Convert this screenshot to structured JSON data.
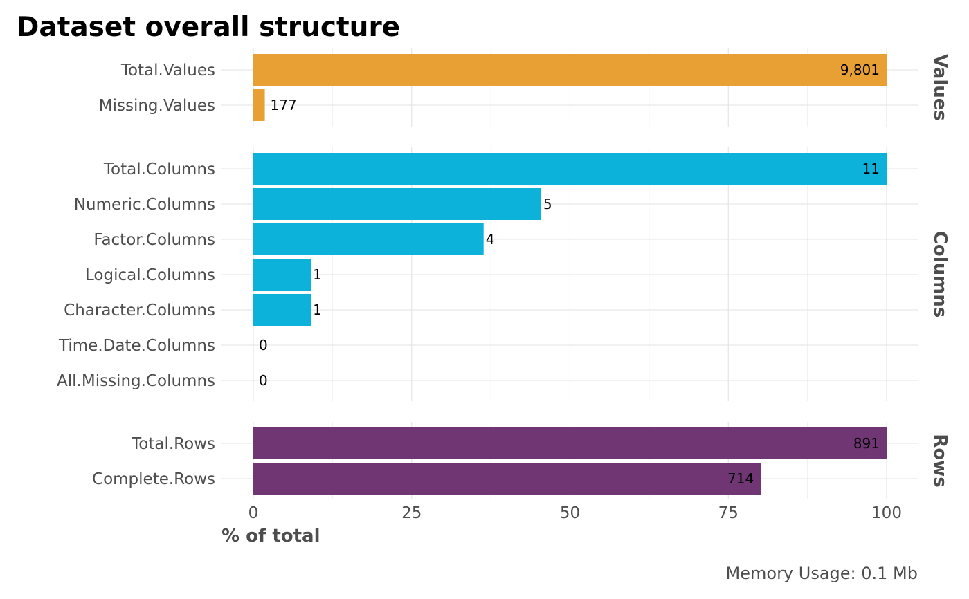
{
  "chart_data": {
    "type": "bar",
    "orientation": "horizontal",
    "title": "Dataset overall structure",
    "xlabel": "% of total",
    "xlim": [
      0,
      100
    ],
    "xticks": [
      "0",
      "25",
      "50",
      "75",
      "100"
    ],
    "caption": "Memory Usage: 0.1 Mb",
    "grid": true,
    "panels": [
      {
        "name": "Values",
        "color": "#E89F33",
        "categories": [
          "Total.Values",
          "Missing.Values"
        ],
        "values": [
          100,
          1.81
        ],
        "labels": [
          "9,801",
          "177"
        ]
      },
      {
        "name": "Columns",
        "color": "#0DB2DB",
        "categories": [
          "Total.Columns",
          "Numeric.Columns",
          "Factor.Columns",
          "Logical.Columns",
          "Character.Columns",
          "Time.Date.Columns",
          "All.Missing.Columns"
        ],
        "values": [
          100,
          45.45,
          36.36,
          9.09,
          9.09,
          0,
          0
        ],
        "labels": [
          "11",
          "5",
          "4",
          "1",
          "1",
          "0",
          "0"
        ]
      },
      {
        "name": "Rows",
        "color": "#6F3673",
        "categories": [
          "Total.Rows",
          "Complete.Rows"
        ],
        "values": [
          100,
          80.13
        ],
        "labels": [
          "891",
          "714"
        ]
      }
    ]
  }
}
